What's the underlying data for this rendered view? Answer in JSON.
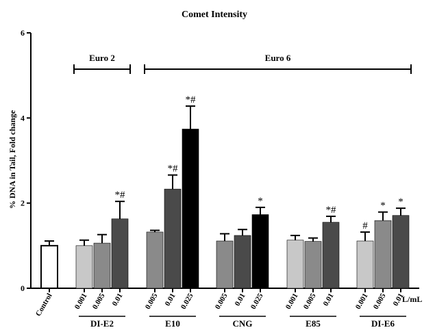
{
  "chart_data": {
    "type": "bar",
    "title": "Comet Intensity",
    "ylabel": "% DNA in Tail, Fold change",
    "xlabel": "",
    "unit_label": "L/mL",
    "ylim": [
      0,
      6
    ],
    "yticks": [
      0,
      2,
      4,
      6
    ],
    "grid": false,
    "categories": [
      "Control",
      "0.001",
      "0.005",
      "0.01",
      "0.005",
      "0.01",
      "0.025",
      "0.005",
      "0.01",
      "0.025",
      "0.001",
      "0.005",
      "0.01",
      "0.001",
      "0.005",
      "0.01"
    ],
    "values": [
      1.0,
      1.0,
      1.06,
      1.63,
      1.32,
      2.33,
      3.74,
      1.11,
      1.24,
      1.73,
      1.13,
      1.1,
      1.55,
      1.11,
      1.59,
      1.71
    ],
    "errors": [
      0.11,
      0.13,
      0.2,
      0.41,
      0.04,
      0.33,
      0.54,
      0.17,
      0.14,
      0.17,
      0.11,
      0.08,
      0.14,
      0.21,
      0.2,
      0.17
    ],
    "colors": [
      "#ffffff",
      "#c8c8c8",
      "#8a8a8a",
      "#4a4a4a",
      "#8a8a8a",
      "#4a4a4a",
      "#000000",
      "#8a8a8a",
      "#4a4a4a",
      "#000000",
      "#c8c8c8",
      "#8a8a8a",
      "#4a4a4a",
      "#c8c8c8",
      "#8a8a8a",
      "#4a4a4a"
    ],
    "significance": [
      "",
      "",
      "",
      "*#",
      "",
      "*#",
      "*#",
      "",
      "",
      "*",
      "",
      "",
      "*#",
      "#",
      "*",
      "*"
    ],
    "groups": [
      {
        "label": "DI-E2",
        "start": 1,
        "end": 3
      },
      {
        "label": "E10",
        "start": 4,
        "end": 6
      },
      {
        "label": "CNG",
        "start": 7,
        "end": 9
      },
      {
        "label": "E85",
        "start": 10,
        "end": 12
      },
      {
        "label": "DI-E6",
        "start": 13,
        "end": 15
      }
    ],
    "brackets": [
      {
        "label": "Euro 2",
        "start": 1,
        "end": 3
      },
      {
        "label": "Euro 6",
        "start": 4,
        "end": 15
      }
    ]
  }
}
